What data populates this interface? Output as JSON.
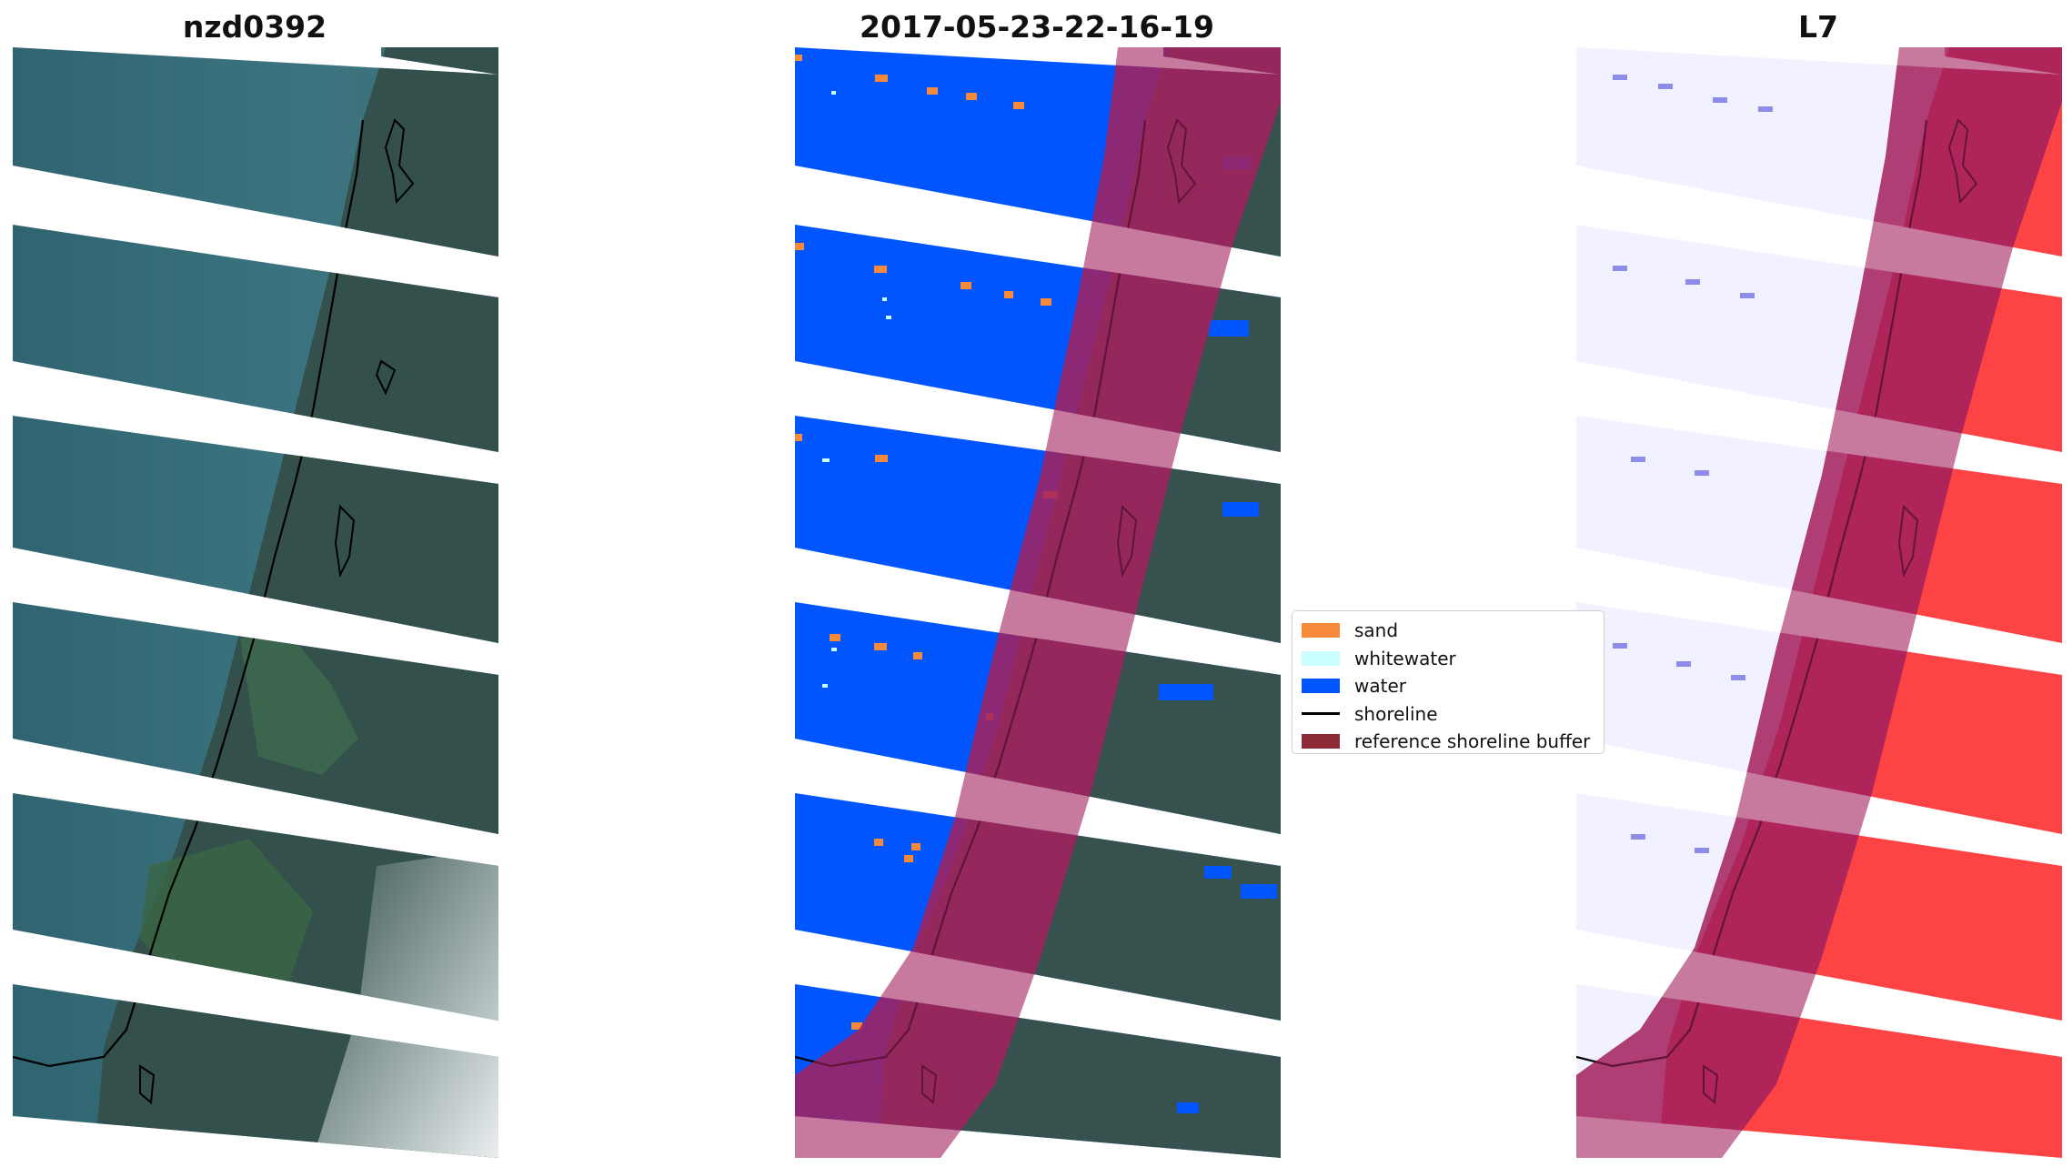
{
  "panels": [
    {
      "title": "nzd0392",
      "kind": "rgb"
    },
    {
      "title": "2017-05-23-22-16-19",
      "kind": "classified"
    },
    {
      "title": "L7",
      "kind": "index"
    }
  ],
  "legend": {
    "items": [
      {
        "label": "sand",
        "color": "#f6893a",
        "style": "patch"
      },
      {
        "label": "whitewater",
        "color": "#c9ffff",
        "style": "patch"
      },
      {
        "label": "water",
        "color": "#0055ff",
        "style": "patch"
      },
      {
        "label": "shoreline",
        "color": "#000000",
        "style": "line"
      },
      {
        "label": "reference shoreline buffer",
        "color": "#8c2b35",
        "style": "patch"
      }
    ]
  },
  "colors": {
    "buffer": "#a3215e",
    "water": "#0055ff",
    "sand": "#f6893a",
    "land": "#37524e",
    "sea": "#336b76",
    "index_blue": "#3b3bd8",
    "index_red": "#ff1818"
  }
}
